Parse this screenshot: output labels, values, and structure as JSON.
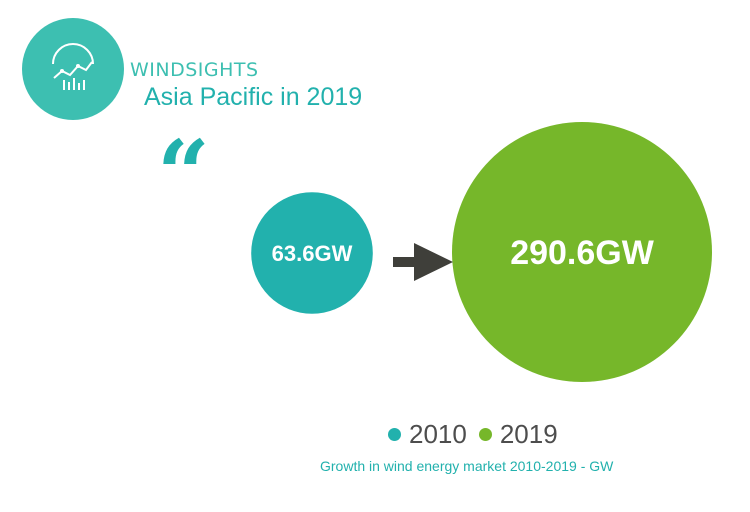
{
  "header": {
    "brand": "WINDSIGHTS",
    "subtitle": "Asia Pacific in 2019",
    "quote_mark": "“"
  },
  "logo": {
    "icon": "chart-gauge-icon"
  },
  "colors": {
    "teal": "#22b1ad",
    "logo_teal": "#3dbfb1",
    "green": "#76b72a",
    "arrow": "#3f3f3a",
    "text": "#4d4d4d"
  },
  "chart_data": {
    "type": "bubble",
    "categories": [
      "2010",
      "2019"
    ],
    "values": [
      63.6,
      290.6
    ],
    "unit": "GW",
    "value_labels": [
      "63.6GW",
      "290.6GW"
    ],
    "legend": [
      "2010",
      "2019"
    ],
    "caption": "Growth in wind energy market 2010-2019 - GW"
  }
}
